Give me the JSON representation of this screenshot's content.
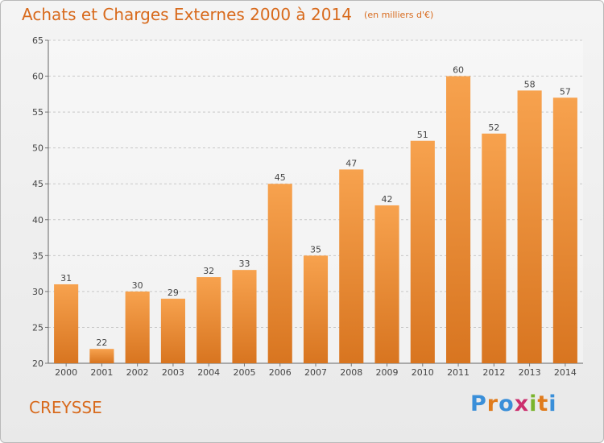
{
  "header": {
    "title": "Achats et Charges Externes 2000 à 2014",
    "subtitle": "(en milliers d'€)"
  },
  "footer": {
    "commune": "CREYSSE",
    "logo_letters": [
      "P",
      "r",
      "o",
      "x",
      "i",
      "t",
      "i"
    ],
    "logo_colors": [
      "#3a8fd9",
      "#e07b1c",
      "#3a8fd9",
      "#cc2f6e",
      "#7ab42c",
      "#e07b1c",
      "#3a8fd9"
    ]
  },
  "colors": {
    "bar_top": "#f7a24e",
    "bar_bottom": "#d87520",
    "title": "#d86a1c",
    "axis": "#555555"
  },
  "chart_data": {
    "type": "bar",
    "title": "Achats et Charges Externes 2000 à 2014",
    "subtitle": "(en milliers d'€)",
    "categories": [
      "2000",
      "2001",
      "2002",
      "2003",
      "2004",
      "2005",
      "2006",
      "2007",
      "2008",
      "2009",
      "2010",
      "2011",
      "2012",
      "2013",
      "2014"
    ],
    "values": [
      31,
      22,
      30,
      29,
      32,
      33,
      45,
      35,
      47,
      42,
      51,
      60,
      52,
      58,
      57
    ],
    "ylim": [
      20,
      65
    ],
    "yticks": [
      20,
      25,
      30,
      35,
      40,
      45,
      50,
      55,
      60,
      65
    ],
    "grid": true,
    "data_labels": true
  }
}
